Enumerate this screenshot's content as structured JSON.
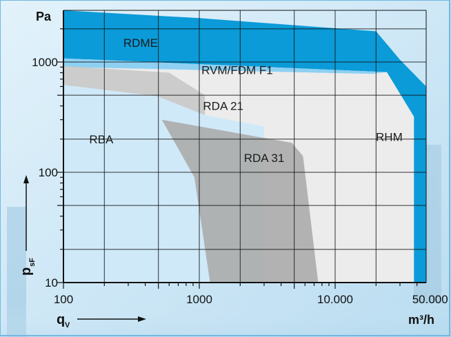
{
  "chart_data": {
    "type": "area",
    "title": "",
    "x_axis": {
      "scale": "log",
      "range": [
        100,
        60000
      ],
      "unit": "m³/h",
      "symbol": "q",
      "symbol_sub": "V",
      "tick_labels": [
        {
          "value": 100,
          "label": "100"
        },
        {
          "value": 1000,
          "label": "1000"
        },
        {
          "value": 10000,
          "label": "10.000"
        },
        {
          "value": 50000,
          "label": "50.000"
        }
      ]
    },
    "y_axis": {
      "scale": "log",
      "range": [
        10,
        4000
      ],
      "unit": "Pa",
      "symbol": "p",
      "symbol_sub": "sF",
      "tick_labels": [
        {
          "value": 10,
          "label": "10"
        },
        {
          "value": 100,
          "label": "100"
        },
        {
          "value": 1000,
          "label": "1000"
        }
      ]
    },
    "regions": [
      {
        "name": "RDME",
        "color": "#0b9bd8",
        "label_at": [
          370,
          1500
        ],
        "polygon": [
          [
            100,
            3000
          ],
          [
            1000,
            2500
          ],
          [
            20000,
            1900
          ],
          [
            30000,
            1050
          ],
          [
            50000,
            600
          ],
          [
            50000,
            10
          ],
          [
            38000,
            10
          ],
          [
            38000,
            320
          ],
          [
            24000,
            810
          ],
          [
            100,
            1080
          ]
        ]
      },
      {
        "name": "RVM/FDM F1",
        "color": "#8ed0f2",
        "label_at": [
          1900,
          850
        ],
        "polygon": [
          [
            100,
            1080
          ],
          [
            24000,
            810
          ],
          [
            19000,
            780
          ],
          [
            100,
            900
          ]
        ]
      },
      {
        "name": "RHM",
        "color": "#ececec",
        "label_at": [
          25000,
          210
        ],
        "polygon": [
          [
            100,
            900
          ],
          [
            19000,
            780
          ],
          [
            24000,
            810
          ],
          [
            38000,
            320
          ],
          [
            38000,
            10
          ],
          [
            100,
            10
          ]
        ]
      },
      {
        "name": "RBA",
        "color": "#cce8f8",
        "label_at": [
          190,
          200
        ],
        "polygon": [
          [
            100,
            620
          ],
          [
            490,
            490
          ],
          [
            1100,
            330
          ],
          [
            3000,
            260
          ],
          [
            3000,
            10
          ],
          [
            100,
            10
          ]
        ]
      },
      {
        "name": "RDA 21",
        "color": "#c9c9c9",
        "label_at": [
          1500,
          400
        ],
        "polygon": [
          [
            100,
            920
          ],
          [
            600,
            800
          ],
          [
            1100,
            500
          ],
          [
            1100,
            330
          ],
          [
            490,
            490
          ],
          [
            100,
            620
          ]
        ]
      },
      {
        "name": "RDA 31",
        "color": "#adadad",
        "label_at": [
          3000,
          135
        ],
        "polygon": [
          [
            530,
            300
          ],
          [
            4800,
            185
          ],
          [
            5800,
            140
          ],
          [
            7500,
            10
          ],
          [
            1200,
            10
          ],
          [
            920,
            90
          ]
        ]
      }
    ]
  }
}
